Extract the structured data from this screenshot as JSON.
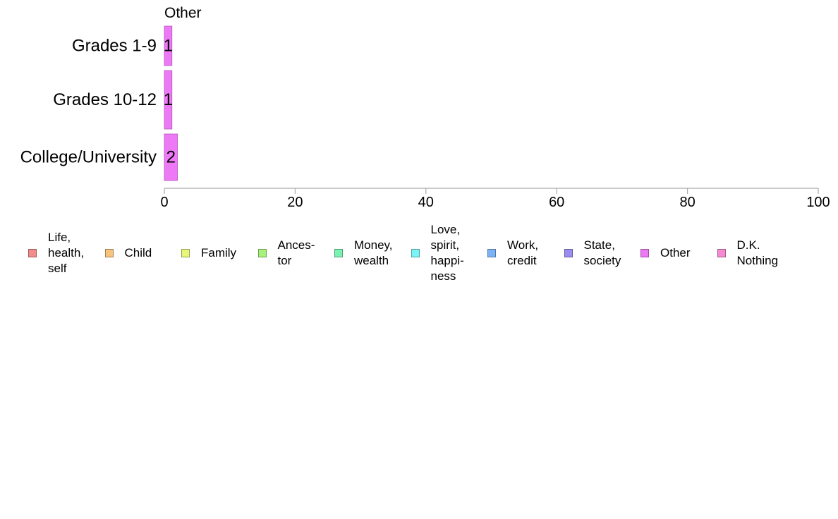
{
  "chart_data": {
    "type": "bar",
    "orientation": "horizontal",
    "title": "Other",
    "categories": [
      "Grades 1-9",
      "Grades 10-12",
      "College/University"
    ],
    "series": [
      {
        "name": "Other",
        "values": [
          1,
          1,
          2
        ],
        "labels": [
          "1",
          "1",
          "2"
        ]
      }
    ],
    "xlim": [
      0,
      100
    ],
    "xticks": [
      0,
      20,
      40,
      60,
      80,
      100
    ],
    "xlabel": "",
    "ylabel": "",
    "grid": false,
    "legend_position": "bottom",
    "legend": [
      {
        "label": "Life,\nhealth,\nself",
        "color": "#f28b8b"
      },
      {
        "label": "Child",
        "color": "#f7c47e"
      },
      {
        "label": "Family",
        "color": "#e8f57a"
      },
      {
        "label": "Ances-\ntor",
        "color": "#a7f27a"
      },
      {
        "label": "Money,\nwealth",
        "color": "#7af2b1"
      },
      {
        "label": "Love,\nspirit,\nhappi-\nness",
        "color": "#7af4f6"
      },
      {
        "label": "Work,\ncredit",
        "color": "#7ab4f6"
      },
      {
        "label": "State,\nsociety",
        "color": "#9b8cf2"
      },
      {
        "label": "Other",
        "color": "#ee79f6"
      },
      {
        "label": "D.K.\nNothing",
        "color": "#f68ad0"
      }
    ],
    "bar_color": "#ee79f6",
    "axis_color": "#aaaaaa"
  }
}
